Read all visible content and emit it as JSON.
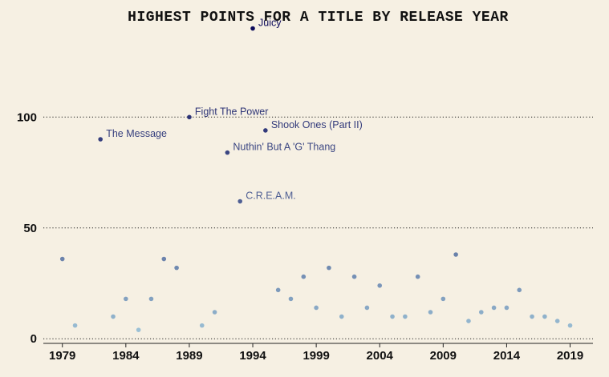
{
  "chart_data": {
    "type": "scatter",
    "title": "HIGHEST POINTS FOR A TITLE BY RELEASE YEAR",
    "xlabel": "",
    "ylabel": "",
    "xlim": [
      1977.5,
      2020.8
    ],
    "ylim": [
      -1,
      142
    ],
    "x_ticks": [
      1979,
      1984,
      1989,
      1994,
      1999,
      2004,
      2009,
      2014,
      2019
    ],
    "y_ticks": [
      0,
      50,
      100
    ],
    "grid": "horizontal dotted",
    "points": [
      {
        "x": 1979,
        "y": 36
      },
      {
        "x": 1980,
        "y": 6
      },
      {
        "x": 1982,
        "y": 90,
        "label": "The Message"
      },
      {
        "x": 1983,
        "y": 10
      },
      {
        "x": 1984,
        "y": 18
      },
      {
        "x": 1985,
        "y": 4
      },
      {
        "x": 1986,
        "y": 18
      },
      {
        "x": 1987,
        "y": 36
      },
      {
        "x": 1988,
        "y": 32
      },
      {
        "x": 1989,
        "y": 100,
        "label": "Fight The Power"
      },
      {
        "x": 1990,
        "y": 6
      },
      {
        "x": 1991,
        "y": 12
      },
      {
        "x": 1992,
        "y": 84,
        "label": "Nuthin' But A 'G' Thang"
      },
      {
        "x": 1993,
        "y": 62,
        "label": "C.R.E.A.M."
      },
      {
        "x": 1994,
        "y": 140,
        "label": "Juicy"
      },
      {
        "x": 1995,
        "y": 94,
        "label": "Shook Ones (Part II)"
      },
      {
        "x": 1996,
        "y": 22
      },
      {
        "x": 1997,
        "y": 18
      },
      {
        "x": 1998,
        "y": 28
      },
      {
        "x": 1999,
        "y": 14
      },
      {
        "x": 2000,
        "y": 32
      },
      {
        "x": 2001,
        "y": 10
      },
      {
        "x": 2002,
        "y": 28
      },
      {
        "x": 2003,
        "y": 14
      },
      {
        "x": 2004,
        "y": 24
      },
      {
        "x": 2005,
        "y": 10
      },
      {
        "x": 2006,
        "y": 10
      },
      {
        "x": 2007,
        "y": 28
      },
      {
        "x": 2008,
        "y": 12
      },
      {
        "x": 2009,
        "y": 18
      },
      {
        "x": 2010,
        "y": 38
      },
      {
        "x": 2011,
        "y": 8
      },
      {
        "x": 2012,
        "y": 12
      },
      {
        "x": 2013,
        "y": 14
      },
      {
        "x": 2014,
        "y": 14
      },
      {
        "x": 2015,
        "y": 22
      },
      {
        "x": 2016,
        "y": 10
      },
      {
        "x": 2017,
        "y": 10
      },
      {
        "x": 2018,
        "y": 8
      },
      {
        "x": 2019,
        "y": 6
      }
    ],
    "color_scale": {
      "low": "#a8d0e0",
      "high": "#0c0a5a",
      "min": 0,
      "max": 140
    },
    "colors": {
      "background": "#f6f0e3",
      "grid": "#222222",
      "tick_text": "#111111"
    }
  }
}
